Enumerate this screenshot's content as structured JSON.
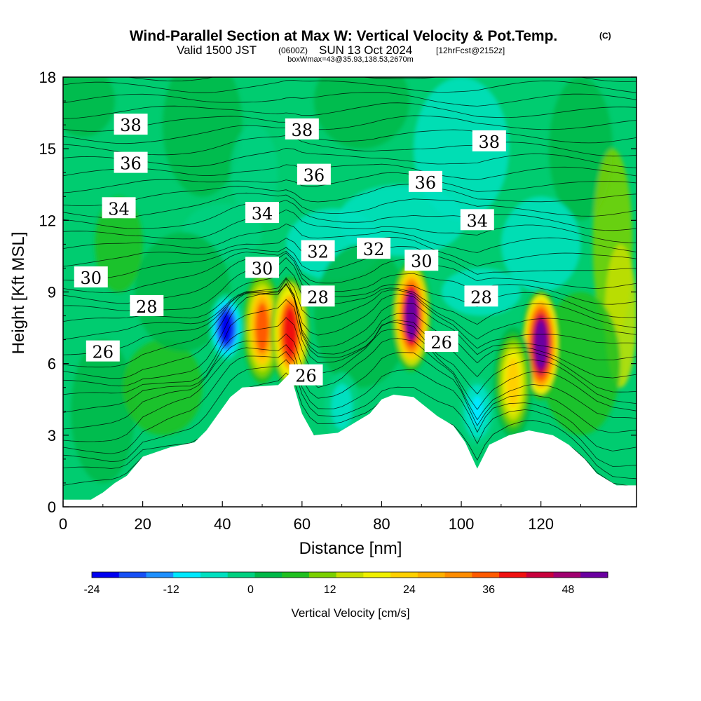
{
  "header": {
    "title": "Wind-Parallel Section at Max W: Vertical Velocity & Pot.Temp.",
    "copyright": "(C)",
    "valid_prefix": "Valid 1500 JST",
    "valid_utc": "(0600Z)",
    "valid_date": "SUN 13 Oct 2024",
    "forecast": "[12hrFcst@2152z]",
    "box_info": "boxWmax=43@35.93,138.53,2670m"
  },
  "chart_data": {
    "type": "heatmap",
    "xlabel": "Distance [nm]",
    "ylabel": "Height [Kft MSL]",
    "xlim": [
      0,
      144
    ],
    "ylim": [
      0,
      18
    ],
    "x_ticks": [
      "0",
      "20",
      "40",
      "60",
      "80",
      "100",
      "120"
    ],
    "y_ticks": [
      "0",
      "3",
      "6",
      "9",
      "12",
      "15",
      "18"
    ],
    "terrain_profile": [
      [
        0,
        0.3
      ],
      [
        7,
        0.3
      ],
      [
        10,
        0.6
      ],
      [
        13,
        1.0
      ],
      [
        16,
        1.3
      ],
      [
        20,
        2.1
      ],
      [
        27,
        2.5
      ],
      [
        33,
        2.7
      ],
      [
        36,
        3.2
      ],
      [
        39,
        3.9
      ],
      [
        42,
        4.6
      ],
      [
        45,
        5.0
      ],
      [
        54,
        5.1
      ],
      [
        57,
        5.6
      ],
      [
        60,
        3.9
      ],
      [
        63,
        3.0
      ],
      [
        69,
        3.1
      ],
      [
        73,
        3.5
      ],
      [
        77,
        3.9
      ],
      [
        80,
        4.5
      ],
      [
        83,
        4.7
      ],
      [
        88,
        4.6
      ],
      [
        94,
        3.8
      ],
      [
        98,
        3.4
      ],
      [
        101,
        2.7
      ],
      [
        104,
        1.6
      ],
      [
        107,
        2.6
      ],
      [
        112,
        3.0
      ],
      [
        117,
        3.2
      ],
      [
        123,
        3.0
      ],
      [
        127,
        2.6
      ],
      [
        131,
        2.0
      ],
      [
        134,
        1.4
      ],
      [
        139,
        0.9
      ],
      [
        144,
        0.9
      ]
    ],
    "updraft_cores": [
      {
        "distance": 50,
        "height": 7.5,
        "w": 34
      },
      {
        "distance": 57,
        "height": 7.3,
        "w": 41
      },
      {
        "distance": 87.5,
        "height": 8.0,
        "w": 50
      },
      {
        "distance": 120,
        "height": 6.8,
        "w": 52
      },
      {
        "distance": 113,
        "height": 5.2,
        "w": 22
      }
    ],
    "downdraft_cores": [
      {
        "distance": 41,
        "height": 7.5,
        "w": -20
      },
      {
        "distance": 70,
        "height": 4.2,
        "w": -6
      },
      {
        "distance": 104,
        "height": 4.0,
        "w": -8
      }
    ],
    "theta_contour_labels": [
      {
        "value": "38",
        "x": 17,
        "y": 16.0
      },
      {
        "value": "38",
        "x": 60,
        "y": 15.8
      },
      {
        "value": "38",
        "x": 107,
        "y": 15.3
      },
      {
        "value": "36",
        "x": 17,
        "y": 14.4
      },
      {
        "value": "36",
        "x": 63,
        "y": 13.9
      },
      {
        "value": "36",
        "x": 91,
        "y": 13.6
      },
      {
        "value": "34",
        "x": 14,
        "y": 12.5
      },
      {
        "value": "34",
        "x": 50,
        "y": 12.3
      },
      {
        "value": "34",
        "x": 104,
        "y": 12.0
      },
      {
        "value": "32",
        "x": 64,
        "y": 10.7
      },
      {
        "value": "32",
        "x": 78,
        "y": 10.8
      },
      {
        "value": "30",
        "x": 7,
        "y": 9.6
      },
      {
        "value": "30",
        "x": 50,
        "y": 10.0
      },
      {
        "value": "30",
        "x": 90,
        "y": 10.3
      },
      {
        "value": "28",
        "x": 21,
        "y": 8.4
      },
      {
        "value": "28",
        "x": 64,
        "y": 8.8
      },
      {
        "value": "28",
        "x": 105,
        "y": 8.8
      },
      {
        "value": "26",
        "x": 10,
        "y": 6.5
      },
      {
        "value": "26",
        "x": 61,
        "y": 5.5
      },
      {
        "value": "26",
        "x": 95,
        "y": 6.9
      }
    ],
    "colorbar": {
      "label": "Vertical Velocity [cm/s]",
      "tick_labels": [
        "-24",
        "-12",
        "0",
        "12",
        "24",
        "36",
        "48"
      ],
      "tick_values": [
        -24,
        -12,
        0,
        12,
        24,
        36,
        48
      ],
      "range": [
        -24,
        54
      ],
      "colors": [
        "#0000f0",
        "#1750f5",
        "#1e90ff",
        "#00e8ff",
        "#00e0c0",
        "#00d080",
        "#00b848",
        "#20c020",
        "#7ad000",
        "#c8e000",
        "#f0f000",
        "#ffd000",
        "#ffb000",
        "#ff8c00",
        "#ff5a00",
        "#f01010",
        "#c8003c",
        "#a00070",
        "#6a00a0"
      ]
    }
  }
}
